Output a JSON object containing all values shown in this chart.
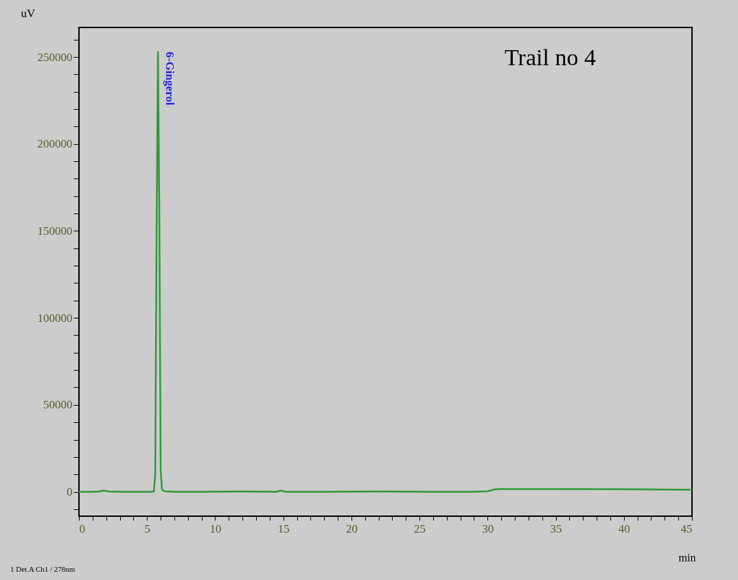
{
  "chart_data": {
    "type": "line",
    "xlabel": "min",
    "ylabel": "uV",
    "x": [
      0,
      1,
      1.5,
      1.8,
      2.2,
      3,
      4,
      5,
      5.3,
      5.5,
      5.6,
      5.7,
      5.8,
      5.9,
      6.0,
      6.1,
      6.3,
      7,
      9,
      12,
      14.5,
      14.8,
      15.2,
      18,
      22,
      26,
      29,
      30,
      30.5,
      31,
      35,
      40,
      45
    ],
    "series": [
      {
        "color": "#2f9a36",
        "values": [
          0,
          0,
          200,
          700,
          200,
          0,
          0,
          0,
          0,
          200,
          10000,
          150000,
          253000,
          160000,
          12000,
          1200,
          300,
          0,
          0,
          200,
          0,
          700,
          0,
          0,
          200,
          0,
          0,
          300,
          1400,
          1600,
          1600,
          1500,
          1200
        ]
      }
    ],
    "annotations": [
      {
        "text": "6-Gingerol",
        "x": 5.8,
        "y": 253000
      },
      "Trail no 4",
      "1 Det.A Ch1 / 278nm"
    ],
    "xlim": [
      0,
      45
    ],
    "xticks": [
      0,
      {
        "value": 1,
        "label": null
      },
      {
        "value": 2,
        "label": null
      },
      {
        "value": 3,
        "label": null
      },
      {
        "value": 4,
        "label": null
      },
      5,
      {
        "value": 6,
        "label": null
      },
      {
        "value": 7,
        "label": null
      },
      {
        "value": 8,
        "label": null
      },
      {
        "value": 9,
        "label": null
      },
      10,
      {
        "value": 11,
        "label": null
      },
      {
        "value": 12,
        "label": null
      },
      {
        "value": 13,
        "label": null
      },
      {
        "value": 14,
        "label": null
      },
      15,
      {
        "value": 16,
        "label": null
      },
      {
        "value": 17,
        "label": null
      },
      {
        "value": 18,
        "label": null
      },
      {
        "value": 19,
        "label": null
      },
      20,
      {
        "value": 21,
        "label": null
      },
      {
        "value": 22,
        "label": null
      },
      {
        "value": 23,
        "label": null
      },
      {
        "value": 24,
        "label": null
      },
      25,
      {
        "value": 26,
        "label": null
      },
      {
        "value": 27,
        "label": null
      },
      {
        "value": 28,
        "label": null
      },
      {
        "value": 29,
        "label": null
      },
      30,
      {
        "value": 31,
        "label": null
      },
      {
        "value": 32,
        "label": null
      },
      {
        "value": 33,
        "label": null
      },
      {
        "value": 34,
        "label": null
      },
      35,
      {
        "value": 36,
        "label": null
      },
      {
        "value": 37,
        "label": null
      },
      {
        "value": 38,
        "label": null
      },
      {
        "value": 39,
        "label": null
      },
      40,
      {
        "value": 41,
        "label": null
      },
      {
        "value": 42,
        "label": null
      },
      {
        "value": 43,
        "label": null
      },
      {
        "value": 44,
        "label": null
      },
      45
    ],
    "ylim": [
      -14000,
      267000
    ],
    "yticks": [
      {
        "value": -10000,
        "label": null
      },
      0,
      {
        "value": 10000,
        "label": null
      },
      {
        "value": 20000,
        "label": null
      },
      {
        "value": 30000,
        "label": null
      },
      {
        "value": 40000,
        "label": null
      },
      50000,
      {
        "value": 60000,
        "label": null
      },
      {
        "value": 70000,
        "label": null
      },
      {
        "value": 80000,
        "label": null
      },
      {
        "value": 90000,
        "label": null
      },
      100000,
      {
        "value": 110000,
        "label": null
      },
      {
        "value": 120000,
        "label": null
      },
      {
        "value": 130000,
        "label": null
      },
      {
        "value": 140000,
        "label": null
      },
      150000,
      {
        "value": 160000,
        "label": null
      },
      {
        "value": 170000,
        "label": null
      },
      {
        "value": 180000,
        "label": null
      },
      {
        "value": 190000,
        "label": null
      },
      200000,
      {
        "value": 210000,
        "label": null
      },
      {
        "value": 220000,
        "label": null
      },
      {
        "value": 230000,
        "label": null
      },
      {
        "value": 240000,
        "label": null
      },
      250000,
      {
        "value": 260000,
        "label": null
      }
    ],
    "grid": false
  }
}
